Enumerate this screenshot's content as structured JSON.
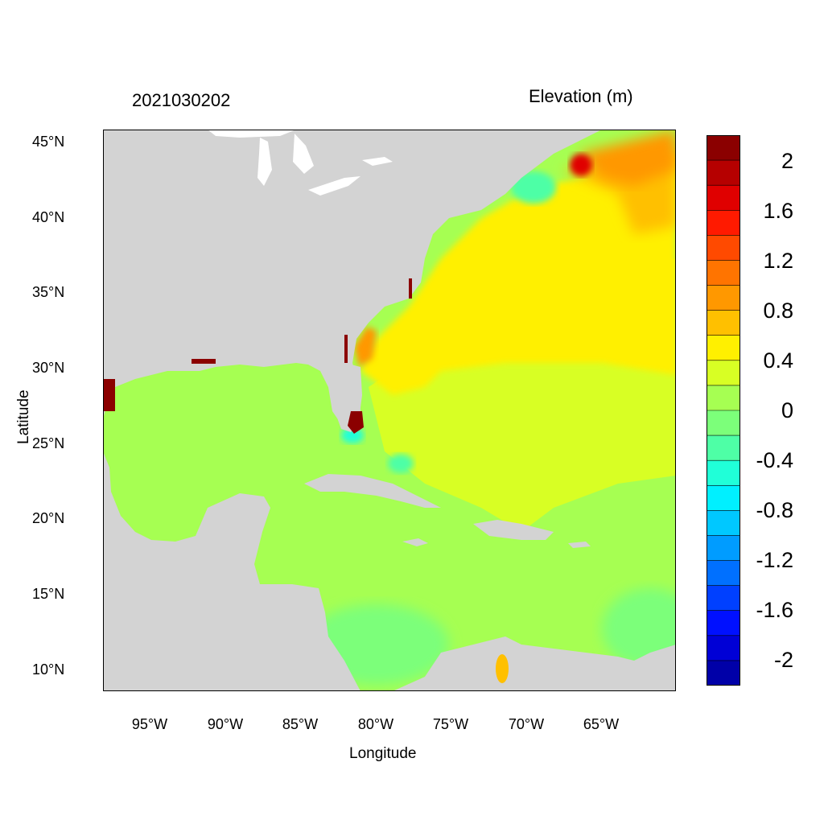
{
  "titles": {
    "left": "2021030202",
    "right": "Elevation (m)"
  },
  "axes": {
    "x_label": "Longitude",
    "y_label": "Latitude",
    "lat_ticks": [
      "45°N",
      "40°N",
      "35°N",
      "30°N",
      "25°N",
      "20°N",
      "15°N",
      "10°N"
    ],
    "lon_ticks": [
      "95°W",
      "90°W",
      "85°W",
      "80°W",
      "75°W",
      "70°W",
      "65°W"
    ]
  },
  "colorbar": {
    "labels": [
      "2",
      "1.6",
      "1.2",
      "0.8",
      "0.4",
      "0",
      "-0.4",
      "-0.8",
      "-1.2",
      "-1.6",
      "-2"
    ],
    "colors": [
      "#8b0000",
      "#b60000",
      "#e00000",
      "#ff1a00",
      "#ff4a00",
      "#ff7400",
      "#ff9800",
      "#ffc000",
      "#fff000",
      "#d8ff24",
      "#a6ff52",
      "#7cff7a",
      "#4effa6",
      "#20ffd8",
      "#00f0ff",
      "#00c8ff",
      "#009cff",
      "#0070ff",
      "#0040ff",
      "#0010ff",
      "#0000d6",
      "#0000a8"
    ]
  },
  "colors": {
    "land": "#d3d3d3",
    "water_base": "#a6ff52"
  }
}
